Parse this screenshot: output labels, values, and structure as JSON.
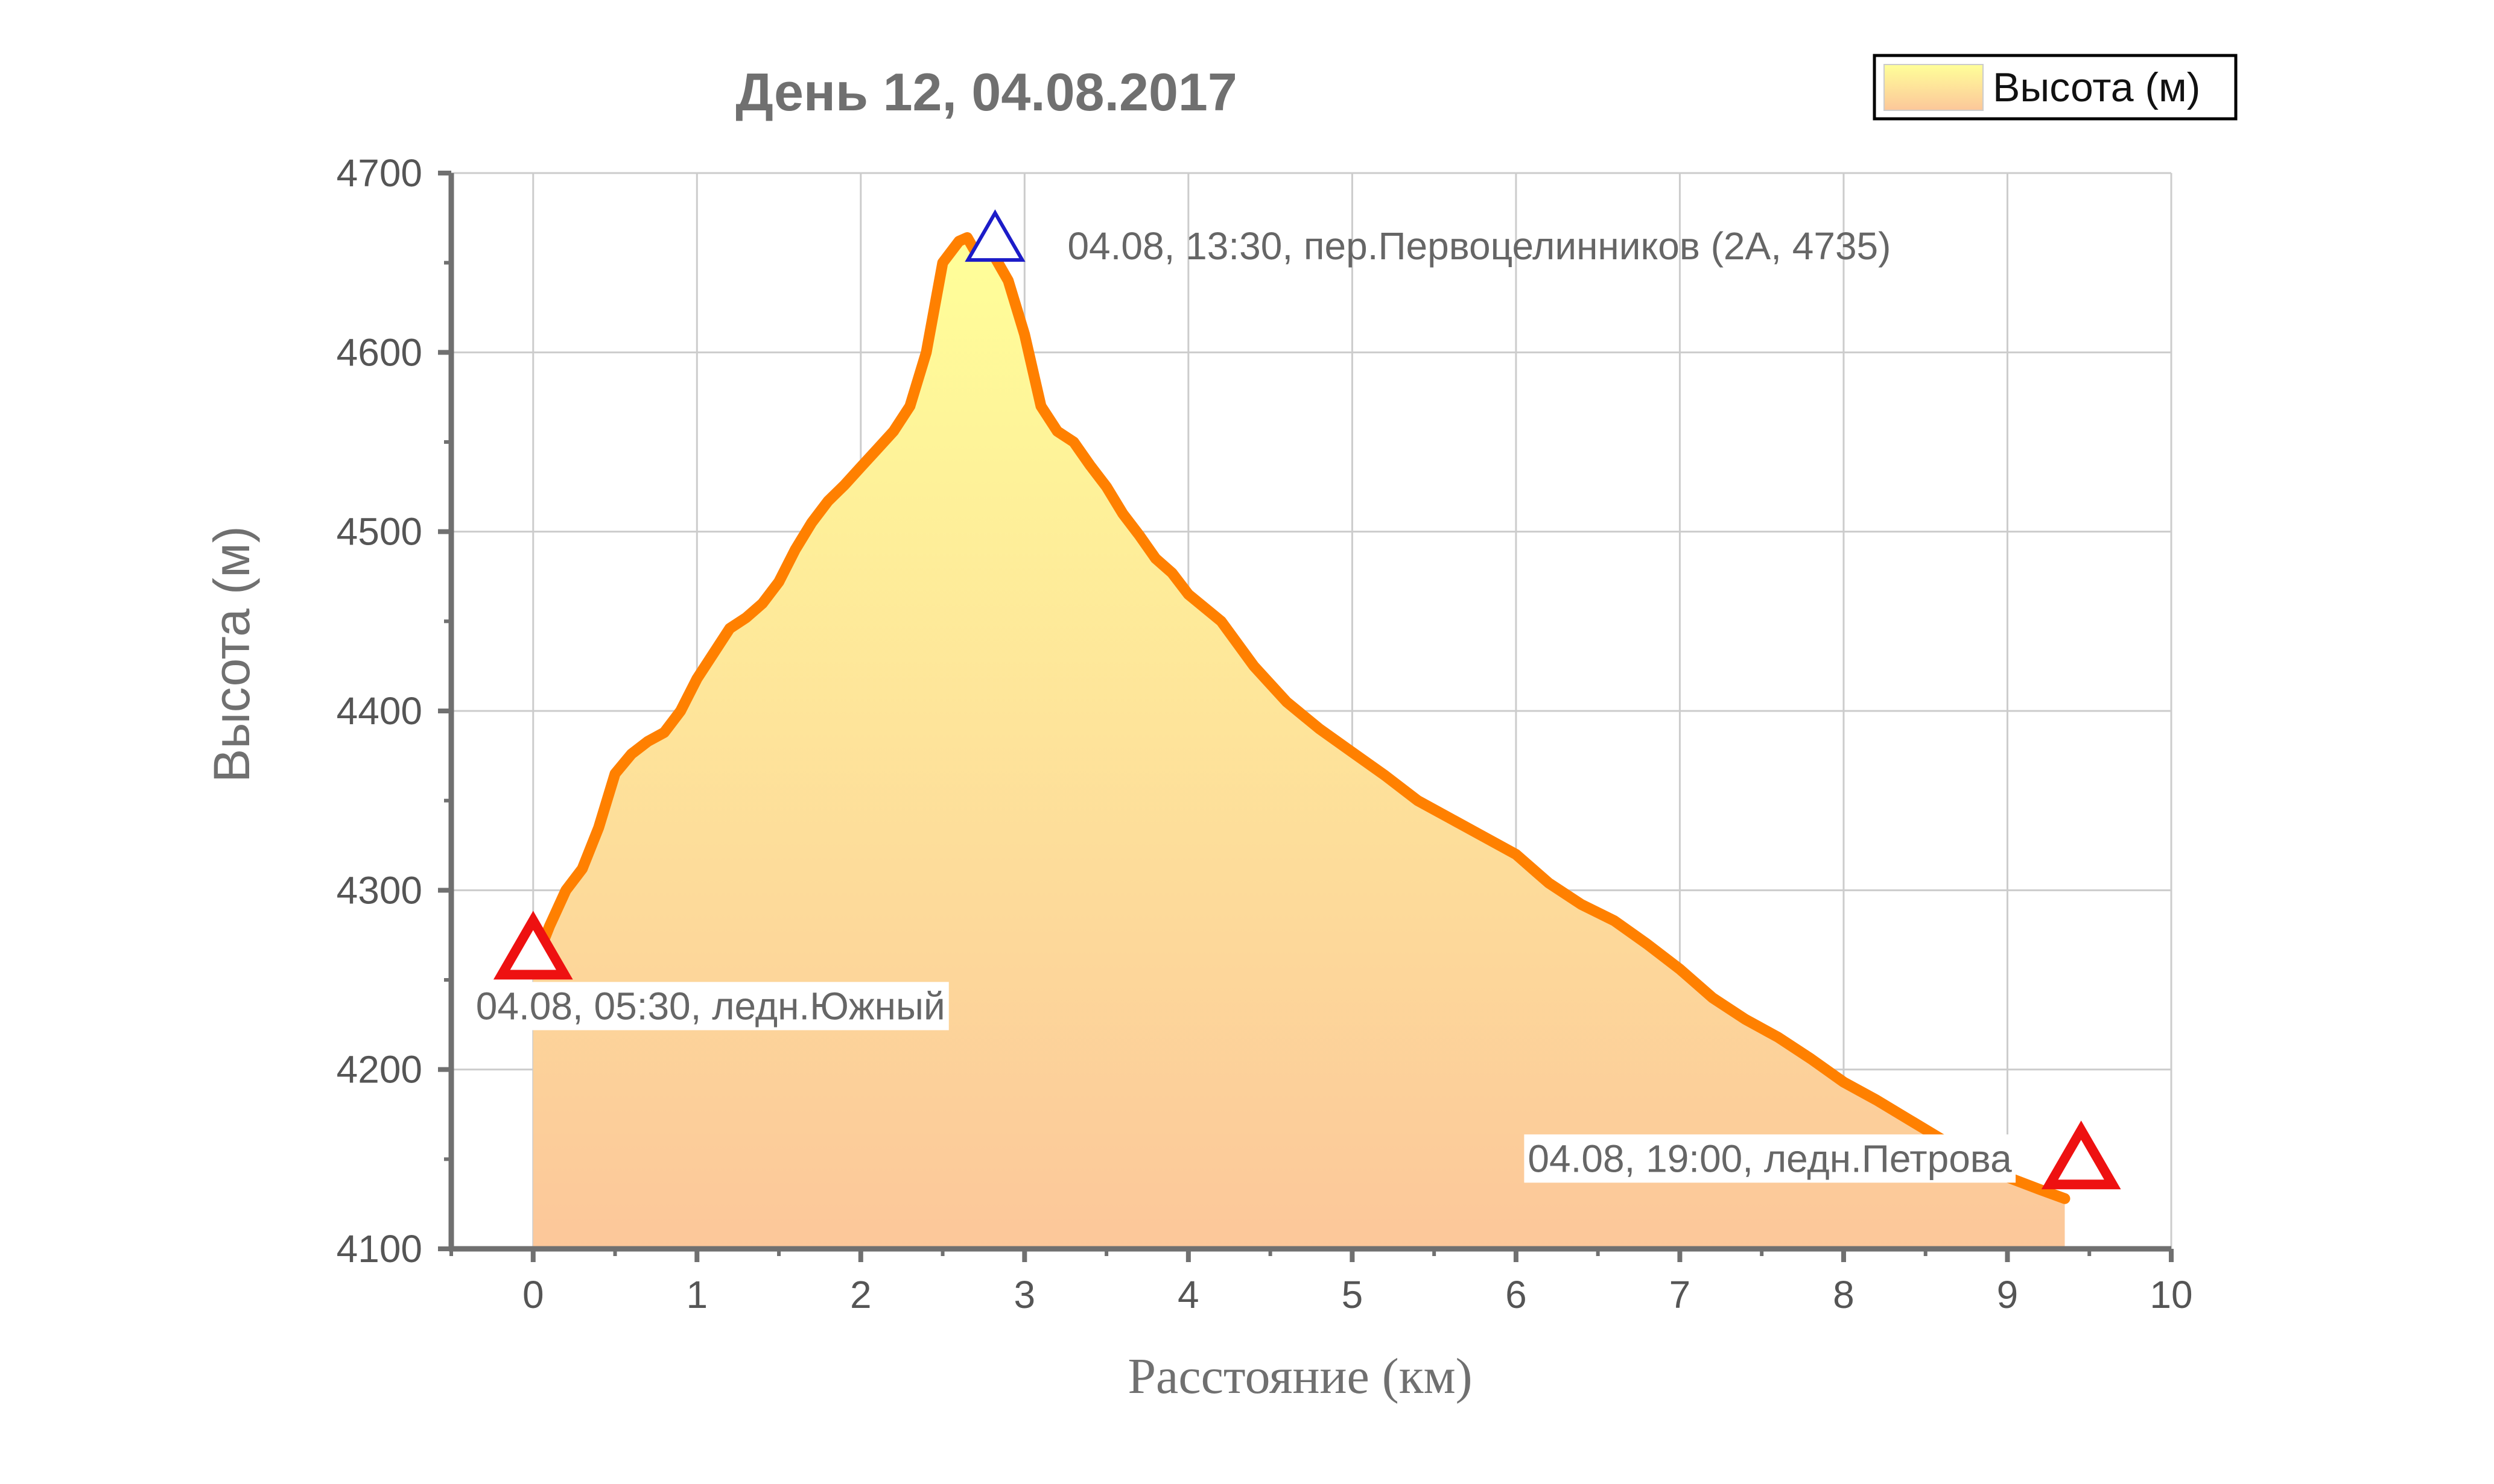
{
  "chart_data": {
    "type": "area",
    "title": "День 12, 04.08.2017",
    "xlabel": "Расстояние (км)",
    "ylabel": "Высота (м)",
    "xlim": [
      -0.5,
      10
    ],
    "ylim": [
      4100,
      4700
    ],
    "x_ticks": [
      "0",
      "1",
      "2",
      "3",
      "4",
      "5",
      "6",
      "7",
      "8",
      "9",
      "10"
    ],
    "y_ticks": [
      "4100",
      "4200",
      "4300",
      "4400",
      "4500",
      "4600",
      "4700"
    ],
    "grid": true,
    "legend": {
      "position": "top-right",
      "entries": [
        "Высота (м)"
      ]
    },
    "series": [
      {
        "name": "Высота (м)",
        "x": [
          0,
          0.1,
          0.2,
          0.3,
          0.4,
          0.5,
          0.6,
          0.7,
          0.8,
          0.9,
          1.0,
          1.1,
          1.2,
          1.3,
          1.4,
          1.5,
          1.6,
          1.7,
          1.8,
          1.9,
          2.0,
          2.1,
          2.2,
          2.3,
          2.4,
          2.5,
          2.6,
          2.65,
          2.7,
          2.8,
          2.9,
          3.0,
          3.1,
          3.2,
          3.3,
          3.4,
          3.5,
          3.6,
          3.7,
          3.8,
          3.9,
          4.0,
          4.2,
          4.4,
          4.6,
          4.8,
          5.0,
          5.2,
          5.4,
          5.6,
          5.8,
          6.0,
          6.2,
          6.4,
          6.6,
          6.8,
          7.0,
          7.2,
          7.4,
          7.6,
          7.8,
          8.0,
          8.2,
          8.4,
          8.6,
          8.8,
          9.0,
          9.2,
          9.35
        ],
        "values": [
          4257,
          4280,
          4300,
          4312,
          4335,
          4365,
          4376,
          4383,
          4388,
          4400,
          4418,
          4432,
          4446,
          4452,
          4460,
          4472,
          4490,
          4505,
          4517,
          4526,
          4536,
          4546,
          4556,
          4570,
          4600,
          4650,
          4662,
          4664,
          4656,
          4656,
          4640,
          4610,
          4570,
          4556,
          4550,
          4537,
          4525,
          4510,
          4498,
          4485,
          4477,
          4465,
          4450,
          4425,
          4405,
          4390,
          4377,
          4364,
          4350,
          4340,
          4330,
          4320,
          4304,
          4292,
          4283,
          4270,
          4256,
          4240,
          4228,
          4218,
          4206,
          4193,
          4183,
          4172,
          4161,
          4150,
          4140,
          4133,
          4128
        ]
      }
    ],
    "markers": [
      {
        "x": 0,
        "y": 4265,
        "color": "#ee1111",
        "label": "04.08, 05:30, ледн.Южный"
      },
      {
        "x": 2.82,
        "y": 4662,
        "color": "#1c1cc8",
        "label": "04.08, 13:30, пер.Первоцелинников (2А, 4735)"
      },
      {
        "x": 9.45,
        "y": 4148,
        "color": "#ee1111",
        "label": "04.08, 19:00, ледн.Петрова"
      }
    ],
    "colors": {
      "line": "#ff8000",
      "fill_top": "#ffff99",
      "fill_bottom": "#fcc79a",
      "grid": "#cccccc",
      "axis": "#707070"
    }
  }
}
